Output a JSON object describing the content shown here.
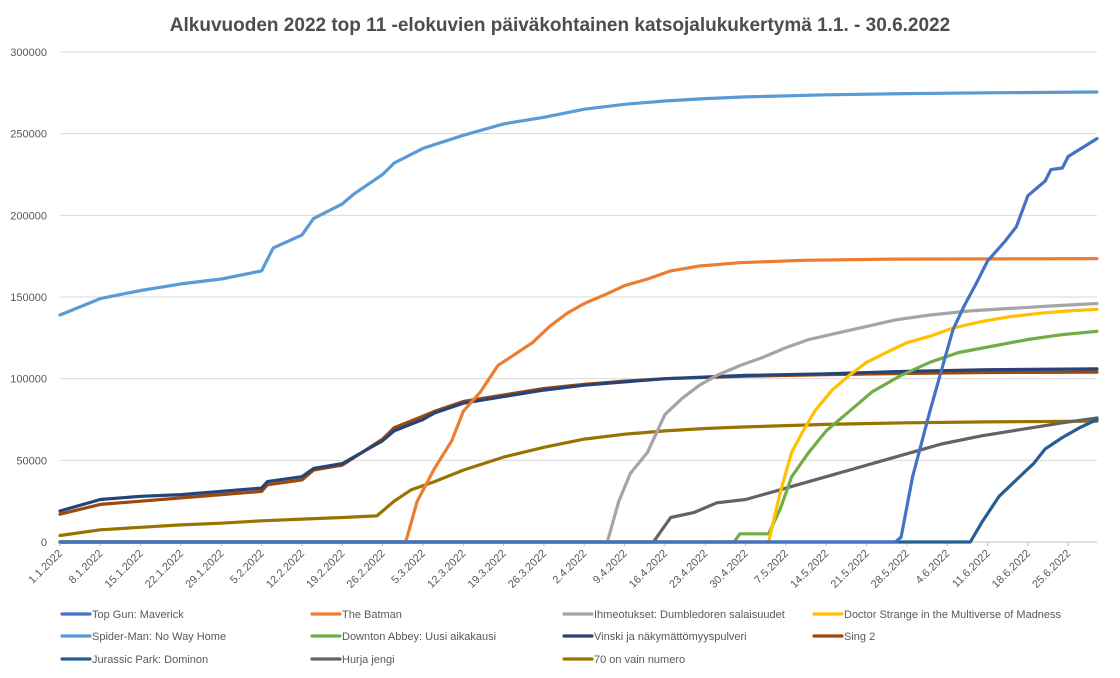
{
  "chart_data": {
    "type": "line",
    "title": "Alkuvuoden 2022 top 11 -elokuvien päiväkohtainen  katsojalukukertymä  1.1. - 30.6.2022",
    "xlabel": "",
    "ylabel": "",
    "ylim": [
      0,
      300000
    ],
    "yticks": [
      0,
      50000,
      100000,
      150000,
      200000,
      250000,
      300000
    ],
    "ytick_labels": [
      "0",
      "50000",
      "100000",
      "150000",
      "200000",
      "250000",
      "300000"
    ],
    "x_tick_labels": [
      "1.1.2022",
      "8.1.2022",
      "15.1.2022",
      "22.1.2022",
      "29.1.2022",
      "5.2.2022",
      "12.2.2022",
      "19.2.2022",
      "26.2.2022",
      "5.3.2022",
      "12.3.2022",
      "19.3.2022",
      "26.3.2022",
      "2.4.2022",
      "9.4.2022",
      "16.4.2022",
      "23.4.2022",
      "30.4.2022",
      "7.5.2022",
      "14.5.2022",
      "21.5.2022",
      "28.5.2022",
      "4.6.2022",
      "11.6.2022",
      "18.6.2022",
      "25.6.2022"
    ],
    "grid": true,
    "legend_position": "bottom",
    "series": [
      {
        "name": "Top Gun: Maverick",
        "color": "#4472c4",
        "points": [
          [
            "2022-01-01",
            0
          ],
          [
            "2022-05-26",
            0
          ],
          [
            "2022-05-27",
            3000
          ],
          [
            "2022-05-29",
            40000
          ],
          [
            "2022-06-01",
            80000
          ],
          [
            "2022-06-03",
            105000
          ],
          [
            "2022-06-05",
            130000
          ],
          [
            "2022-06-07",
            145000
          ],
          [
            "2022-06-09",
            158000
          ],
          [
            "2022-06-11",
            172000
          ],
          [
            "2022-06-14",
            184000
          ],
          [
            "2022-06-16",
            193000
          ],
          [
            "2022-06-18",
            212000
          ],
          [
            "2022-06-21",
            221000
          ],
          [
            "2022-06-22",
            228000
          ],
          [
            "2022-06-24",
            229000
          ],
          [
            "2022-06-25",
            236000
          ],
          [
            "2022-06-30",
            247000
          ]
        ]
      },
      {
        "name": "The Batman",
        "color": "#ed7d31",
        "points": [
          [
            "2022-01-01",
            0
          ],
          [
            "2022-03-02",
            0
          ],
          [
            "2022-03-04",
            25000
          ],
          [
            "2022-03-07",
            45000
          ],
          [
            "2022-03-10",
            62000
          ],
          [
            "2022-03-12",
            80000
          ],
          [
            "2022-03-15",
            92000
          ],
          [
            "2022-03-18",
            108000
          ],
          [
            "2022-03-21",
            115000
          ],
          [
            "2022-03-24",
            122000
          ],
          [
            "2022-03-27",
            132000
          ],
          [
            "2022-03-30",
            140000
          ],
          [
            "2022-04-02",
            146000
          ],
          [
            "2022-04-06",
            152000
          ],
          [
            "2022-04-09",
            157000
          ],
          [
            "2022-04-13",
            161000
          ],
          [
            "2022-04-17",
            166000
          ],
          [
            "2022-04-22",
            169000
          ],
          [
            "2022-04-29",
            171000
          ],
          [
            "2022-05-10",
            172500
          ],
          [
            "2022-05-25",
            173200
          ],
          [
            "2022-06-30",
            173500
          ]
        ]
      },
      {
        "name": "Ihmeotukset: Dumbledoren salaisuudet",
        "color": "#a5a5a5",
        "points": [
          [
            "2022-01-01",
            0
          ],
          [
            "2022-04-06",
            0
          ],
          [
            "2022-04-08",
            25000
          ],
          [
            "2022-04-10",
            42000
          ],
          [
            "2022-04-13",
            55000
          ],
          [
            "2022-04-16",
            78000
          ],
          [
            "2022-04-19",
            88000
          ],
          [
            "2022-04-22",
            96000
          ],
          [
            "2022-04-25",
            102000
          ],
          [
            "2022-04-29",
            108000
          ],
          [
            "2022-05-03",
            113000
          ],
          [
            "2022-05-07",
            119000
          ],
          [
            "2022-05-11",
            124000
          ],
          [
            "2022-05-16",
            128000
          ],
          [
            "2022-05-21",
            132000
          ],
          [
            "2022-05-26",
            136000
          ],
          [
            "2022-06-01",
            139000
          ],
          [
            "2022-06-08",
            141500
          ],
          [
            "2022-06-15",
            143000
          ],
          [
            "2022-06-22",
            144500
          ],
          [
            "2022-06-30",
            146000
          ]
        ]
      },
      {
        "name": "Doctor Strange in the Multiverse of Madness",
        "color": "#ffc000",
        "points": [
          [
            "2022-01-01",
            0
          ],
          [
            "2022-05-04",
            0
          ],
          [
            "2022-05-06",
            30000
          ],
          [
            "2022-05-08",
            55000
          ],
          [
            "2022-05-10",
            68000
          ],
          [
            "2022-05-12",
            80000
          ],
          [
            "2022-05-15",
            93000
          ],
          [
            "2022-05-18",
            102000
          ],
          [
            "2022-05-21",
            110000
          ],
          [
            "2022-05-25",
            117000
          ],
          [
            "2022-05-28",
            122000
          ],
          [
            "2022-06-01",
            126000
          ],
          [
            "2022-06-05",
            131000
          ],
          [
            "2022-06-10",
            135000
          ],
          [
            "2022-06-15",
            138000
          ],
          [
            "2022-06-20",
            140000
          ],
          [
            "2022-06-25",
            141500
          ],
          [
            "2022-06-30",
            142500
          ]
        ]
      },
      {
        "name": "Spider-Man: No Way Home",
        "color": "#5b9bd5",
        "points": [
          [
            "2022-01-01",
            139000
          ],
          [
            "2022-01-08",
            149000
          ],
          [
            "2022-01-15",
            154000
          ],
          [
            "2022-01-22",
            158000
          ],
          [
            "2022-01-29",
            161000
          ],
          [
            "2022-02-05",
            166000
          ],
          [
            "2022-02-07",
            180000
          ],
          [
            "2022-02-12",
            188000
          ],
          [
            "2022-02-14",
            198000
          ],
          [
            "2022-02-19",
            207000
          ],
          [
            "2022-02-21",
            213000
          ],
          [
            "2022-02-26",
            225000
          ],
          [
            "2022-02-28",
            232000
          ],
          [
            "2022-03-05",
            241000
          ],
          [
            "2022-03-12",
            249000
          ],
          [
            "2022-03-19",
            256000
          ],
          [
            "2022-03-26",
            260000
          ],
          [
            "2022-04-02",
            265000
          ],
          [
            "2022-04-09",
            268000
          ],
          [
            "2022-04-16",
            270000
          ],
          [
            "2022-04-23",
            271500
          ],
          [
            "2022-04-30",
            272500
          ],
          [
            "2022-05-14",
            273800
          ],
          [
            "2022-05-28",
            274500
          ],
          [
            "2022-06-11",
            275000
          ],
          [
            "2022-06-30",
            275500
          ]
        ]
      },
      {
        "name": "Downton Abbey: Uusi aikakausi",
        "color": "#70ad47",
        "points": [
          [
            "2022-01-01",
            0
          ],
          [
            "2022-04-28",
            0
          ],
          [
            "2022-04-29",
            5000
          ],
          [
            "2022-05-04",
            5000
          ],
          [
            "2022-05-06",
            20000
          ],
          [
            "2022-05-08",
            40000
          ],
          [
            "2022-05-11",
            55000
          ],
          [
            "2022-05-14",
            68000
          ],
          [
            "2022-05-18",
            80000
          ],
          [
            "2022-05-22",
            92000
          ],
          [
            "2022-05-27",
            102000
          ],
          [
            "2022-06-01",
            110000
          ],
          [
            "2022-06-06",
            116000
          ],
          [
            "2022-06-12",
            120000
          ],
          [
            "2022-06-18",
            124000
          ],
          [
            "2022-06-24",
            127000
          ],
          [
            "2022-06-30",
            129000
          ]
        ]
      },
      {
        "name": "Vinski ja näkymättömyyspulveri",
        "color": "#264478",
        "points": [
          [
            "2022-01-01",
            19000
          ],
          [
            "2022-01-08",
            26000
          ],
          [
            "2022-01-15",
            28000
          ],
          [
            "2022-01-22",
            29000
          ],
          [
            "2022-01-29",
            31000
          ],
          [
            "2022-02-05",
            33000
          ],
          [
            "2022-02-06",
            37000
          ],
          [
            "2022-02-12",
            40000
          ],
          [
            "2022-02-14",
            45000
          ],
          [
            "2022-02-19",
            48000
          ],
          [
            "2022-02-26",
            62000
          ],
          [
            "2022-02-28",
            68000
          ],
          [
            "2022-03-05",
            75000
          ],
          [
            "2022-03-07",
            79000
          ],
          [
            "2022-03-12",
            85000
          ],
          [
            "2022-03-19",
            89000
          ],
          [
            "2022-03-26",
            93000
          ],
          [
            "2022-04-02",
            96000
          ],
          [
            "2022-04-09",
            98000
          ],
          [
            "2022-04-16",
            100000
          ],
          [
            "2022-04-30",
            102000
          ],
          [
            "2022-05-14",
            103000
          ],
          [
            "2022-05-28",
            104500
          ],
          [
            "2022-06-11",
            105500
          ],
          [
            "2022-06-30",
            106000
          ]
        ]
      },
      {
        "name": "Sing 2",
        "color": "#9e480e",
        "points": [
          [
            "2022-01-01",
            17000
          ],
          [
            "2022-01-08",
            23000
          ],
          [
            "2022-01-15",
            25000
          ],
          [
            "2022-01-22",
            27000
          ],
          [
            "2022-01-29",
            29000
          ],
          [
            "2022-02-05",
            31000
          ],
          [
            "2022-02-06",
            35000
          ],
          [
            "2022-02-12",
            38000
          ],
          [
            "2022-02-14",
            44000
          ],
          [
            "2022-02-19",
            47000
          ],
          [
            "2022-02-26",
            63000
          ],
          [
            "2022-02-28",
            70000
          ],
          [
            "2022-03-05",
            77000
          ],
          [
            "2022-03-07",
            80000
          ],
          [
            "2022-03-12",
            86000
          ],
          [
            "2022-03-19",
            90000
          ],
          [
            "2022-03-26",
            94000
          ],
          [
            "2022-04-02",
            96500
          ],
          [
            "2022-04-09",
            98500
          ],
          [
            "2022-04-16",
            100000
          ],
          [
            "2022-04-30",
            101500
          ],
          [
            "2022-05-14",
            102500
          ],
          [
            "2022-05-28",
            103200
          ],
          [
            "2022-06-11",
            103800
          ],
          [
            "2022-06-30",
            104000
          ]
        ]
      },
      {
        "name": "Jurassic Park: Dominon",
        "color": "#255e91",
        "points": [
          [
            "2022-01-01",
            0
          ],
          [
            "2022-06-08",
            0
          ],
          [
            "2022-06-10",
            12000
          ],
          [
            "2022-06-13",
            28000
          ],
          [
            "2022-06-16",
            38000
          ],
          [
            "2022-06-19",
            48000
          ],
          [
            "2022-06-21",
            57000
          ],
          [
            "2022-06-24",
            64000
          ],
          [
            "2022-06-27",
            70000
          ],
          [
            "2022-06-30",
            75000
          ]
        ]
      },
      {
        "name": "Hurja jengi",
        "color": "#636363",
        "points": [
          [
            "2022-01-01",
            0
          ],
          [
            "2022-04-14",
            0
          ],
          [
            "2022-04-17",
            15000
          ],
          [
            "2022-04-21",
            18000
          ],
          [
            "2022-04-25",
            24000
          ],
          [
            "2022-04-30",
            26000
          ],
          [
            "2022-05-05",
            31000
          ],
          [
            "2022-05-09",
            35000
          ],
          [
            "2022-05-14",
            40000
          ],
          [
            "2022-05-19",
            45000
          ],
          [
            "2022-05-24",
            50000
          ],
          [
            "2022-05-29",
            55000
          ],
          [
            "2022-06-03",
            60000
          ],
          [
            "2022-06-10",
            65000
          ],
          [
            "2022-06-17",
            69000
          ],
          [
            "2022-06-24",
            73000
          ],
          [
            "2022-06-30",
            76000
          ]
        ]
      },
      {
        "name": "70 on vain numero",
        "color": "#997300",
        "points": [
          [
            "2022-01-01",
            4000
          ],
          [
            "2022-01-08",
            7500
          ],
          [
            "2022-01-15",
            9000
          ],
          [
            "2022-01-22",
            10500
          ],
          [
            "2022-01-29",
            11500
          ],
          [
            "2022-02-05",
            13000
          ],
          [
            "2022-02-12",
            14000
          ],
          [
            "2022-02-19",
            15000
          ],
          [
            "2022-02-25",
            16000
          ],
          [
            "2022-02-28",
            25000
          ],
          [
            "2022-03-03",
            32000
          ],
          [
            "2022-03-07",
            37000
          ],
          [
            "2022-03-12",
            44000
          ],
          [
            "2022-03-19",
            52000
          ],
          [
            "2022-03-26",
            58000
          ],
          [
            "2022-04-02",
            63000
          ],
          [
            "2022-04-09",
            66000
          ],
          [
            "2022-04-16",
            68000
          ],
          [
            "2022-04-23",
            69500
          ],
          [
            "2022-04-30",
            70500
          ],
          [
            "2022-05-14",
            72000
          ],
          [
            "2022-05-28",
            73000
          ],
          [
            "2022-06-11",
            73500
          ],
          [
            "2022-06-30",
            74000
          ]
        ]
      }
    ]
  }
}
